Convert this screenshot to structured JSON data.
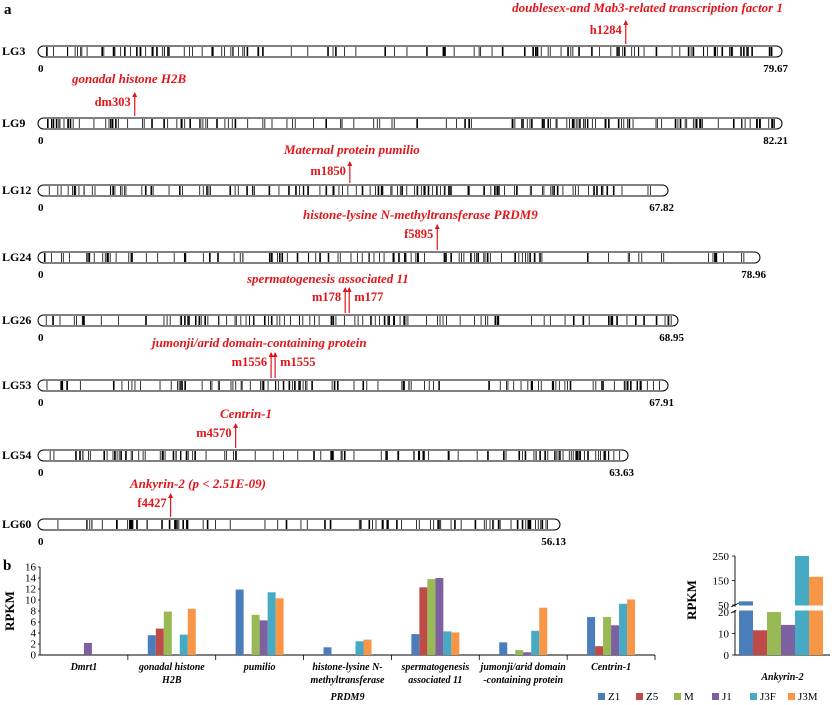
{
  "panel_a": {
    "label": "a",
    "groups": [
      {
        "lg": "LG3",
        "start": "0",
        "end": "79.67",
        "gene": "doublesex-and Mab3-related transcription factor 1",
        "marker": "h1284"
      },
      {
        "lg": "LG9",
        "start": "0",
        "end": "82.21",
        "gene": "gonadal histone H2B",
        "marker": "dm303"
      },
      {
        "lg": "LG12",
        "start": "0",
        "end": "67.82",
        "gene": "Maternal protein pumilio",
        "marker": "m1850"
      },
      {
        "lg": "LG24",
        "start": "0",
        "end": "78.96",
        "gene": "histone-lysine N-methyltransferase PRDM9",
        "marker": "f5895"
      },
      {
        "lg": "LG26",
        "start": "0",
        "end": "68.95",
        "gene": "spermatogenesis associated 11",
        "marker": "m178",
        "marker2": "m177"
      },
      {
        "lg": "LG53",
        "start": "0",
        "end": "67.91",
        "gene": "jumonji/arid domain-containing protein",
        "marker": "m1556",
        "marker2": "m1555"
      },
      {
        "lg": "LG54",
        "start": "0",
        "end": "63.63",
        "gene": "Centrin-1",
        "marker": "m4570"
      },
      {
        "lg": "LG60",
        "start": "0",
        "end": "56.13",
        "gene": "Ankyrin-2",
        "gene_suffix": " (p < 2.51E-09)",
        "marker": "f4427"
      }
    ]
  },
  "panel_b": {
    "label": "b",
    "colors": {
      "Z1": "#4a7ebb",
      "Z5": "#be4b48",
      "M": "#98b954",
      "J1": "#7d60a0",
      "J3F": "#46aac5",
      "J3M": "#f79646"
    }
  },
  "chart_data": [
    {
      "type": "bar",
      "ylabel": "RPKM",
      "ylim": [
        0,
        16
      ],
      "yticks": [
        "0",
        "2",
        "4",
        "6",
        "8",
        "10",
        "12",
        "14",
        "16"
      ],
      "categories": [
        "Dmrt1",
        "gonadal histone H2B",
        "pumilio",
        "histone-lysine N-methyltransferase",
        "spermatogenesis associated 11",
        "jumonji/arid domain -containing protein",
        "Centrin-1"
      ],
      "category_labels": [
        [
          "Dmrt1"
        ],
        [
          "gonadal histone",
          "H2B"
        ],
        [
          "pumilio"
        ],
        [
          "histone-lysine N-",
          "methyltransferase"
        ],
        [
          "spermatogenesis",
          "associated 11"
        ],
        [
          "jumonji/arid domain",
          "-containing protein"
        ],
        [
          "Centrin-1"
        ]
      ],
      "extra_label": "PRDM9",
      "series": [
        {
          "name": "Z1",
          "values": [
            0,
            3.6,
            11.9,
            1.4,
            3.8,
            2.3,
            6.9
          ]
        },
        {
          "name": "Z5",
          "values": [
            0,
            4.8,
            0,
            0,
            12.3,
            0,
            1.6
          ]
        },
        {
          "name": "M",
          "values": [
            0,
            7.9,
            7.3,
            0,
            13.8,
            0.9,
            6.9
          ]
        },
        {
          "name": "J1",
          "values": [
            2.2,
            0,
            6.3,
            0,
            14,
            0.5,
            5.4
          ]
        },
        {
          "name": "J3F",
          "values": [
            0,
            3.7,
            11.4,
            2.5,
            4.3,
            4.4,
            9.3
          ]
        },
        {
          "name": "J3M",
          "values": [
            0,
            8.4,
            10.3,
            2.8,
            4.1,
            8.6,
            10.1
          ]
        }
      ],
      "legend": "bottom-right"
    },
    {
      "type": "bar",
      "ylabel": "RPKM",
      "axis_break": true,
      "yticks": [
        "0",
        "10",
        "20",
        "50",
        "150",
        "250"
      ],
      "categories": [
        "Ankyrin-2"
      ],
      "series": [
        {
          "name": "Z1",
          "values": [
            65
          ]
        },
        {
          "name": "Z5",
          "values": [
            11.5
          ]
        },
        {
          "name": "M",
          "values": [
            20
          ]
        },
        {
          "name": "J1",
          "values": [
            14
          ]
        },
        {
          "name": "J3F",
          "values": [
            250
          ]
        },
        {
          "name": "J3M",
          "values": [
            165
          ]
        }
      ]
    }
  ]
}
